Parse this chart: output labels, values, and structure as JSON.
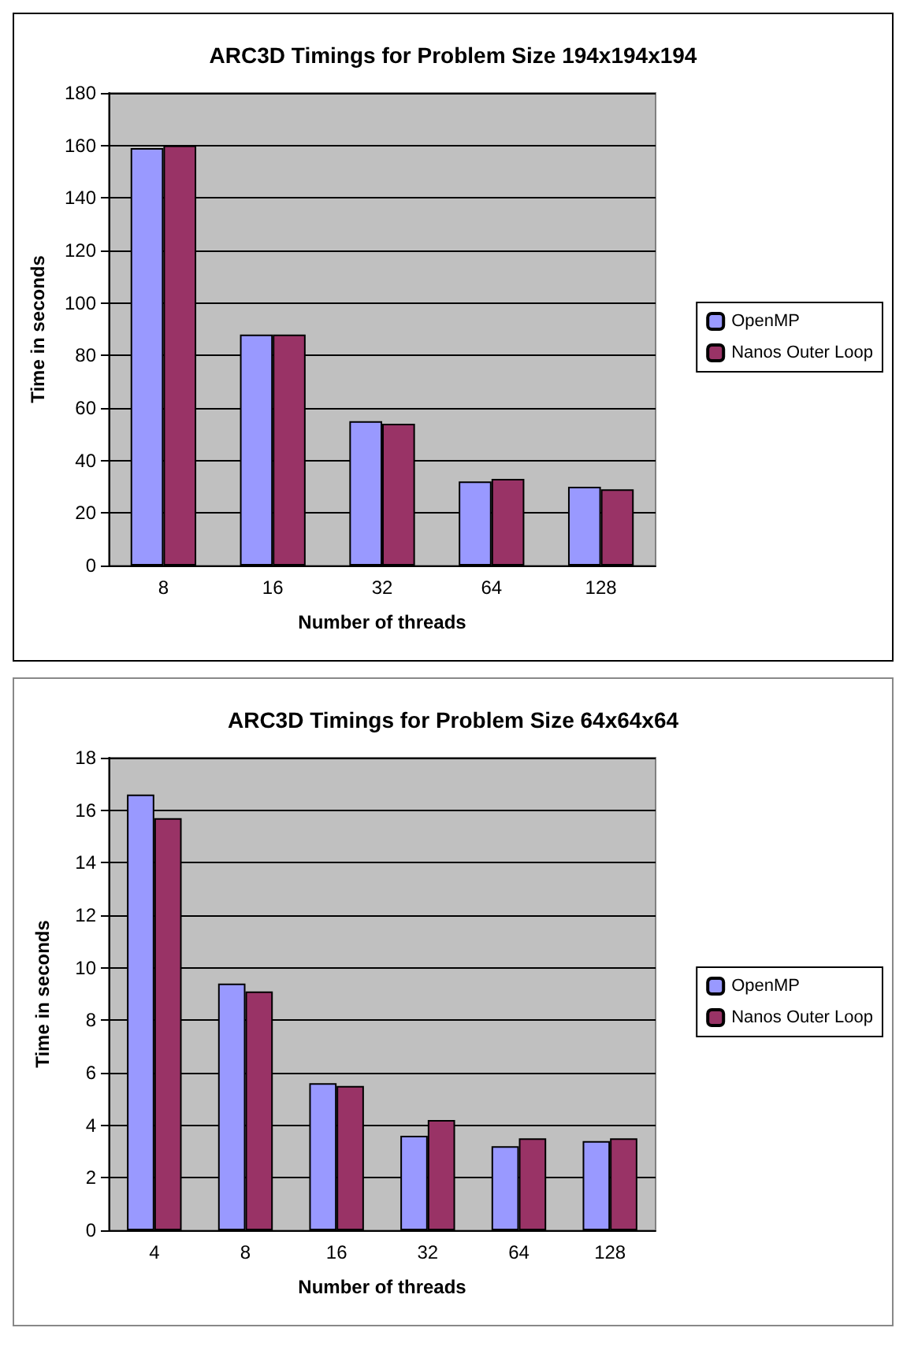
{
  "chart_data": [
    {
      "type": "bar",
      "title": "ARC3D Timings for Problem Size 194x194x194",
      "xlabel": "Number of threads",
      "ylabel": "Time in seconds",
      "categories": [
        "8",
        "16",
        "32",
        "64",
        "128"
      ],
      "series": [
        {
          "name": "OpenMP",
          "color": "#9999ff",
          "values": [
            159,
            88,
            55,
            32,
            30
          ]
        },
        {
          "name": "Nanos Outer Loop",
          "color": "#993366",
          "values": [
            160,
            88,
            54,
            33,
            29
          ]
        }
      ],
      "ylim": [
        0,
        180
      ],
      "yticks": [
        0,
        20,
        40,
        60,
        80,
        100,
        120,
        140,
        160,
        180
      ],
      "grid": "y",
      "legend": "right"
    },
    {
      "type": "bar",
      "title": "ARC3D Timings for Problem Size 64x64x64",
      "xlabel": "Number of threads",
      "ylabel": "Time in seconds",
      "categories": [
        "4",
        "8",
        "16",
        "32",
        "64",
        "128"
      ],
      "series": [
        {
          "name": "OpenMP",
          "color": "#9999ff",
          "values": [
            16.6,
            9.4,
            5.6,
            3.6,
            3.2,
            3.4
          ]
        },
        {
          "name": "Nanos Outer Loop",
          "color": "#993366",
          "values": [
            15.7,
            9.1,
            5.5,
            4.2,
            3.5,
            3.5
          ]
        }
      ],
      "ylim": [
        0,
        18
      ],
      "yticks": [
        0,
        2,
        4,
        6,
        8,
        10,
        12,
        14,
        16,
        18
      ],
      "grid": "y",
      "legend": "right"
    }
  ]
}
